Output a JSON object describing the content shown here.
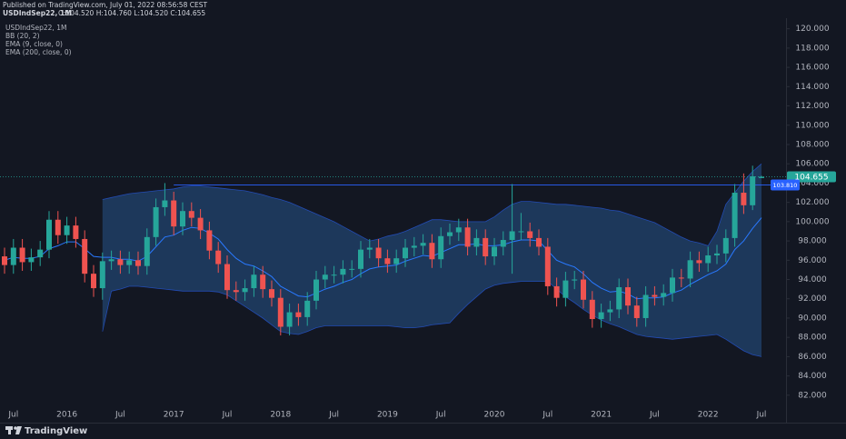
{
  "chart_data": {
    "type": "candlestick",
    "published": "Published on TradingView.com, July 01, 2022 08:56:58 CEST",
    "symbol": "USDIndSep22, 1M",
    "header_ohlc": "O:104.520 H:104.760 L:104.520 C:104.655",
    "indicators": [
      "BB (20, 2)",
      "EMA (9, close, 0)",
      "EMA (200, close, 0)"
    ],
    "brand": "TradingView",
    "up_color": "#26a69a",
    "down_color": "#ef5350",
    "categories": [
      null,
      "Jul",
      null,
      null,
      null,
      null,
      null,
      "2016",
      null,
      null,
      null,
      null,
      null,
      "Jul",
      null,
      null,
      null,
      null,
      null,
      "2017",
      null,
      null,
      null,
      null,
      null,
      "Jul",
      null,
      null,
      null,
      null,
      null,
      "2018",
      null,
      null,
      null,
      null,
      null,
      "Jul",
      null,
      null,
      null,
      null,
      null,
      "2019",
      null,
      null,
      null,
      null,
      null,
      "Jul",
      null,
      null,
      null,
      null,
      null,
      "2020",
      null,
      null,
      null,
      null,
      null,
      "Jul",
      null,
      null,
      null,
      null,
      null,
      "2021",
      null,
      null,
      null,
      null,
      null,
      "Jul",
      null,
      null,
      null,
      null,
      null,
      "2022",
      null,
      null,
      null,
      null,
      null,
      "Jul"
    ],
    "open": [
      96.4,
      95.5,
      97.3,
      95.8,
      96.3,
      97.1,
      100.2,
      98.6,
      99.6,
      98.2,
      94.6,
      93.1,
      95.9,
      96.1,
      95.5,
      96.0,
      95.4,
      98.4,
      101.5,
      102.2,
      99.5,
      101.1,
      100.4,
      99.1,
      97.0,
      95.6,
      92.9,
      92.7,
      93.1,
      94.5,
      93.0,
      92.1,
      89.1,
      90.6,
      90.1,
      91.8,
      94.0,
      94.5,
      94.5,
      95.1,
      95.1,
      97.1,
      97.3,
      96.2,
      95.6,
      96.2,
      97.3,
      97.5,
      97.8,
      96.1,
      98.5,
      98.9,
      99.4,
      97.4,
      98.3,
      96.4,
      97.4,
      98.1,
      99.0,
      99.0,
      98.3,
      97.4,
      93.3,
      92.1,
      93.9,
      94.0,
      91.9,
      89.9,
      90.6,
      90.9,
      93.2,
      91.3,
      90.0,
      92.4,
      92.2,
      92.6,
      94.2,
      94.1,
      96.0,
      95.7,
      96.5,
      96.7,
      98.3,
      103.0,
      101.7,
      104.52
    ],
    "high": [
      97.3,
      98.2,
      98.2,
      97.2,
      98.0,
      101.1,
      101.1,
      100.5,
      100.5,
      99.1,
      95.5,
      96.8,
      97.0,
      97.0,
      96.9,
      96.9,
      99.3,
      102.4,
      104.0,
      103.1,
      102.0,
      102.0,
      101.3,
      100.0,
      97.9,
      96.5,
      93.8,
      94.0,
      95.4,
      95.4,
      93.9,
      93.0,
      91.5,
      91.5,
      92.7,
      94.9,
      95.4,
      95.4,
      96.0,
      96.0,
      98.0,
      98.2,
      98.2,
      97.1,
      97.1,
      98.2,
      98.4,
      98.7,
      98.7,
      99.4,
      99.8,
      100.3,
      100.3,
      99.2,
      99.2,
      98.3,
      99.0,
      103.9,
      100.9,
      99.9,
      99.2,
      98.3,
      94.2,
      94.8,
      94.9,
      94.9,
      92.8,
      91.5,
      91.8,
      94.1,
      94.1,
      92.2,
      93.3,
      93.3,
      93.5,
      95.1,
      95.1,
      96.9,
      96.9,
      97.4,
      97.6,
      99.2,
      103.9,
      105.0,
      105.8,
      104.76
    ],
    "low": [
      94.6,
      94.6,
      94.9,
      94.9,
      95.4,
      96.2,
      97.7,
      97.7,
      97.3,
      93.7,
      92.2,
      91.9,
      95.0,
      94.6,
      94.6,
      94.5,
      94.5,
      97.5,
      100.6,
      98.6,
      98.6,
      99.5,
      98.2,
      96.1,
      94.7,
      92.0,
      91.8,
      91.8,
      92.2,
      92.1,
      91.2,
      88.2,
      88.2,
      89.2,
      89.2,
      90.9,
      93.1,
      93.6,
      93.6,
      94.2,
      94.2,
      96.2,
      95.3,
      94.7,
      94.7,
      95.3,
      96.4,
      96.6,
      95.2,
      95.2,
      97.6,
      98.0,
      96.5,
      96.5,
      95.5,
      95.5,
      96.5,
      94.6,
      98.1,
      97.4,
      96.5,
      92.4,
      91.2,
      91.2,
      93.0,
      91.0,
      89.0,
      89.0,
      89.7,
      90.0,
      90.4,
      89.1,
      89.1,
      91.3,
      91.3,
      91.7,
      93.2,
      93.2,
      94.8,
      94.8,
      95.6,
      95.8,
      97.4,
      100.8,
      101.2,
      104.52
    ],
    "close": [
      95.5,
      97.3,
      95.8,
      96.3,
      97.1,
      100.2,
      98.6,
      99.6,
      98.2,
      94.6,
      93.1,
      95.9,
      96.1,
      95.5,
      96.0,
      95.4,
      98.4,
      101.5,
      102.2,
      99.5,
      101.1,
      100.4,
      99.1,
      97.0,
      95.6,
      92.9,
      92.7,
      93.1,
      94.5,
      93.0,
      92.1,
      89.1,
      90.6,
      90.1,
      91.8,
      94.0,
      94.5,
      94.5,
      95.1,
      95.1,
      97.1,
      97.3,
      96.2,
      95.6,
      96.2,
      97.3,
      97.5,
      97.8,
      96.1,
      98.5,
      98.9,
      99.4,
      97.4,
      98.3,
      96.4,
      97.4,
      98.1,
      99.0,
      99.0,
      98.3,
      97.4,
      93.3,
      92.1,
      93.9,
      94.0,
      91.9,
      89.9,
      90.6,
      90.9,
      93.2,
      91.3,
      90.0,
      92.4,
      92.2,
      92.6,
      94.2,
      94.1,
      96.0,
      95.7,
      96.5,
      96.7,
      98.3,
      103.0,
      101.7,
      104.7,
      104.655
    ],
    "bands": {
      "color": "#2962ff",
      "fill": "#1e3a5f",
      "upper": [
        null,
        null,
        null,
        null,
        null,
        null,
        null,
        null,
        null,
        null,
        null,
        102.3,
        102.5,
        102.7,
        102.9,
        103.0,
        103.1,
        103.2,
        103.3,
        103.4,
        103.6,
        103.7,
        103.7,
        103.6,
        103.5,
        103.4,
        103.3,
        103.2,
        103.0,
        102.8,
        102.5,
        102.3,
        102.0,
        101.6,
        101.2,
        100.8,
        100.4,
        100.0,
        99.5,
        99.0,
        98.5,
        98.0,
        98.2,
        98.5,
        98.7,
        99.0,
        99.4,
        99.8,
        100.2,
        100.2,
        100.1,
        100.0,
        100.0,
        100.0,
        100.0,
        100.5,
        101.2,
        101.8,
        102.1,
        102.1,
        102.0,
        101.9,
        101.8,
        101.8,
        101.7,
        101.6,
        101.5,
        101.4,
        101.2,
        101.1,
        100.8,
        100.5,
        100.2,
        99.9,
        99.4,
        98.9,
        98.4,
        98.0,
        97.8,
        97.5,
        99.0,
        101.8,
        103.0,
        104.2,
        105.2,
        106.0
      ],
      "lower": [
        null,
        null,
        null,
        null,
        null,
        null,
        null,
        null,
        null,
        null,
        null,
        88.6,
        92.8,
        93.0,
        93.3,
        93.3,
        93.2,
        93.1,
        93.0,
        92.9,
        92.8,
        92.8,
        92.8,
        92.8,
        92.7,
        92.4,
        91.8,
        91.2,
        90.6,
        90.0,
        89.3,
        88.6,
        88.4,
        88.3,
        88.6,
        89.0,
        89.2,
        89.2,
        89.2,
        89.2,
        89.2,
        89.2,
        89.2,
        89.2,
        89.1,
        89.0,
        89.0,
        89.1,
        89.3,
        89.4,
        89.5,
        90.5,
        91.4,
        92.2,
        93.0,
        93.4,
        93.6,
        93.7,
        93.8,
        93.8,
        93.8,
        93.8,
        93.0,
        92.2,
        91.6,
        90.9,
        90.3,
        89.8,
        89.4,
        89.1,
        88.7,
        88.3,
        88.1,
        88.0,
        87.9,
        87.8,
        87.9,
        88.0,
        88.1,
        88.2,
        88.3,
        87.8,
        87.2,
        86.6,
        86.2,
        86.0
      ]
    },
    "ema": {
      "color": "#2979ff",
      "values": [
        96.0,
        96.3,
        96.2,
        96.2,
        96.4,
        97.2,
        97.5,
        97.9,
        97.9,
        97.2,
        96.4,
        96.3,
        96.3,
        96.1,
        96.1,
        95.9,
        96.4,
        97.4,
        98.4,
        98.6,
        99.1,
        99.4,
        99.3,
        98.8,
        98.2,
        97.1,
        96.2,
        95.6,
        95.4,
        94.9,
        94.3,
        93.3,
        92.8,
        92.3,
        92.2,
        92.6,
        93.0,
        93.3,
        93.7,
        94.0,
        94.6,
        95.1,
        95.3,
        95.4,
        95.5,
        95.9,
        96.2,
        96.5,
        96.4,
        96.8,
        97.2,
        97.6,
        97.6,
        97.7,
        97.5,
        97.5,
        97.6,
        97.9,
        98.1,
        98.1,
        98.0,
        97.0,
        96.0,
        95.6,
        95.3,
        94.6,
        93.7,
        93.1,
        92.7,
        92.8,
        92.5,
        92.0,
        92.1,
        92.1,
        92.2,
        92.6,
        92.9,
        93.5,
        94.0,
        94.5,
        94.9,
        95.6,
        97.1,
        98.0,
        99.3,
        100.4
      ]
    },
    "price_lines": [
      {
        "value": 104.655,
        "label": "104.655",
        "color": "#26a69a",
        "dashed": true,
        "on_axis": true
      },
      {
        "value": 103.81,
        "label": "103.810",
        "color": "#2962ff",
        "dashed": false,
        "on_axis": false
      }
    ],
    "ylim": [
      80.1,
      121.1
    ],
    "yticks": [
      {
        "value": 82,
        "label": "82.000"
      },
      {
        "value": 84,
        "label": "84.000"
      },
      {
        "value": 86,
        "label": "86.000"
      },
      {
        "value": 88,
        "label": "88.000"
      },
      {
        "value": 90,
        "label": "90.000"
      },
      {
        "value": 92,
        "label": "92.000"
      },
      {
        "value": 94,
        "label": "94.000"
      },
      {
        "value": 96,
        "label": "96.000"
      },
      {
        "value": 98,
        "label": "98.000"
      },
      {
        "value": 100,
        "label": "100.000"
      },
      {
        "value": 102,
        "label": "102.000"
      },
      {
        "value": 104,
        "label": "104.000"
      },
      {
        "value": 106,
        "label": "106.000"
      },
      {
        "value": 108,
        "label": "108.000"
      },
      {
        "value": 110,
        "label": "110.000"
      },
      {
        "value": 112,
        "label": "112.000"
      },
      {
        "value": 114,
        "label": "114.000"
      },
      {
        "value": 116,
        "label": "116.000"
      },
      {
        "value": 118,
        "label": "118.000"
      },
      {
        "value": 120,
        "label": "120.000"
      }
    ],
    "grid": false
  }
}
